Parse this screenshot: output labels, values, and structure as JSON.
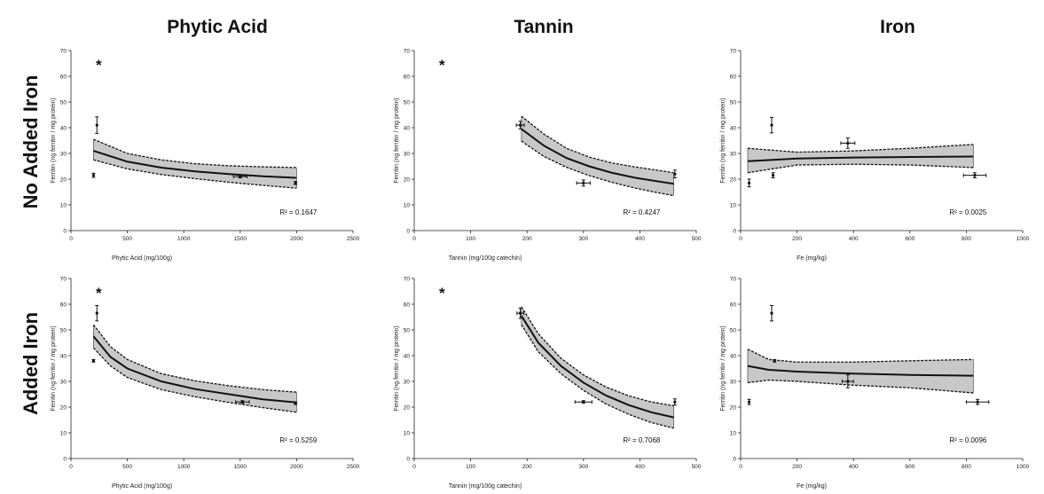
{
  "column_titles": [
    "Phytic Acid",
    "Tannin",
    "Iron"
  ],
  "row_titles": [
    "No Added Iron",
    "Added Iron"
  ],
  "chart_data": [
    {
      "type": "scatter",
      "row": 0,
      "col": 0,
      "xlabel": "Phytic Acid (mg/100g)",
      "ylabel": "Ferritin (ng ferritin / mg protein)",
      "xlim": [
        0,
        2500
      ],
      "ylim": [
        0,
        70
      ],
      "xticks": [
        "0",
        "500",
        "1000",
        "1500",
        "2000",
        "2500"
      ],
      "yticks": [
        "0",
        "10",
        "20",
        "30",
        "40",
        "50",
        "60",
        "70"
      ],
      "r2": "R² = 0.1647",
      "star": "*",
      "points": [
        {
          "x": 200,
          "y": 21.5,
          "xerr": 0,
          "yerr": 0.8
        },
        {
          "x": 230,
          "y": 41,
          "xerr": 0,
          "yerr": 3.2
        },
        {
          "x": 1500,
          "y": 21,
          "xerr": 60,
          "yerr": 0.5
        },
        {
          "x": 1990,
          "y": 18.5,
          "xerr": 0,
          "yerr": 0.6
        }
      ],
      "fit": {
        "x": [
          200,
          500,
          800,
          1100,
          1400,
          1700,
          2000
        ],
        "y": [
          31,
          26.8,
          24.5,
          23,
          22,
          21.1,
          20.5
        ]
      },
      "band_upper": [
        35.5,
        30,
        27.5,
        26,
        25.2,
        24.8,
        24.5
      ],
      "band_lower": [
        27.5,
        24,
        21.8,
        20.2,
        18.8,
        17.6,
        16.5
      ]
    },
    {
      "type": "scatter",
      "row": 0,
      "col": 1,
      "xlabel": "Tannin (mg/100g catechin)",
      "ylabel": "Ferritin (ng ferritin / mg protein)",
      "xlim": [
        0,
        500
      ],
      "ylim": [
        0,
        70
      ],
      "xticks": [
        "0",
        "100",
        "200",
        "300",
        "400",
        "500"
      ],
      "yticks": [
        "0",
        "10",
        "20",
        "30",
        "40",
        "50",
        "60",
        "70"
      ],
      "r2": "R² = 0.4247",
      "star": "*",
      "points": [
        {
          "x": 188,
          "y": 41,
          "xerr": 7,
          "yerr": 1.5
        },
        {
          "x": 300,
          "y": 18.5,
          "xerr": 12,
          "yerr": 1.2
        },
        {
          "x": 462,
          "y": 22,
          "xerr": 0,
          "yerr": 1.5
        }
      ],
      "fit": {
        "x": [
          190,
          230,
          270,
          310,
          350,
          390,
          430,
          460
        ],
        "y": [
          39.5,
          33,
          28.2,
          25,
          22.5,
          20.6,
          19.2,
          18.2
        ]
      },
      "band_upper": [
        44.5,
        37.5,
        32,
        28.6,
        26.3,
        24.8,
        23.5,
        22.5
      ],
      "band_lower": [
        34.8,
        28.8,
        24.6,
        21.4,
        18.8,
        16.6,
        14.8,
        13.6
      ]
    },
    {
      "type": "scatter",
      "row": 0,
      "col": 2,
      "xlabel": "Fe (mg/kg)",
      "ylabel": "Ferritin (ng ferritin / mg protein)",
      "xlim": [
        0,
        1000
      ],
      "ylim": [
        0,
        70
      ],
      "xticks": [
        "0",
        "200",
        "400",
        "600",
        "800",
        "1000"
      ],
      "yticks": [
        "0",
        "10",
        "20",
        "30",
        "40",
        "50",
        "60",
        "70"
      ],
      "r2": "R² = 0.0025",
      "star": "",
      "points": [
        {
          "x": 30,
          "y": 18.5,
          "xerr": 0,
          "yerr": 1.5
        },
        {
          "x": 110,
          "y": 41,
          "xerr": 0,
          "yerr": 3
        },
        {
          "x": 115,
          "y": 21.5,
          "xerr": 0,
          "yerr": 1
        },
        {
          "x": 380,
          "y": 34,
          "xerr": 25,
          "yerr": 2
        },
        {
          "x": 830,
          "y": 21.5,
          "xerr": 40,
          "yerr": 1
        }
      ],
      "fit": {
        "x": [
          25,
          200,
          400,
          600,
          825
        ],
        "y": [
          27,
          28,
          28.4,
          28.6,
          28.8
        ]
      },
      "band_upper": [
        32,
        30.5,
        31,
        32,
        33.5
      ],
      "band_lower": [
        22.5,
        25.5,
        25.8,
        25.5,
        24.5
      ]
    },
    {
      "type": "scatter",
      "row": 1,
      "col": 0,
      "xlabel": "Phytic Acid (mg/100g)",
      "ylabel": "Ferritin (ng ferritin / mg protein)",
      "xlim": [
        0,
        2500
      ],
      "ylim": [
        0,
        70
      ],
      "xticks": [
        "0",
        "500",
        "1000",
        "1500",
        "2000",
        "2500"
      ],
      "yticks": [
        "0",
        "10",
        "20",
        "30",
        "40",
        "50",
        "60",
        "70"
      ],
      "r2": "R² = 0.5259",
      "star": "*",
      "points": [
        {
          "x": 200,
          "y": 38,
          "xerr": 0,
          "yerr": 0.5
        },
        {
          "x": 230,
          "y": 56.5,
          "xerr": 0,
          "yerr": 3
        },
        {
          "x": 1520,
          "y": 22,
          "xerr": 60,
          "yerr": 0.5
        },
        {
          "x": 1990,
          "y": 21.5,
          "xerr": 0,
          "yerr": 0.5
        }
      ],
      "fit": {
        "x": [
          200,
          350,
          500,
          800,
          1100,
          1400,
          1700,
          2000
        ],
        "y": [
          47.5,
          39.5,
          35,
          30,
          27,
          25,
          23,
          21.8
        ]
      },
      "band_upper": [
        52,
        43.5,
        38.5,
        33,
        30.2,
        28.3,
        26.8,
        25.8
      ],
      "band_lower": [
        43,
        36,
        31.5,
        26.8,
        24,
        21.8,
        19.8,
        18
      ]
    },
    {
      "type": "scatter",
      "row": 1,
      "col": 1,
      "xlabel": "Tannin (mg/100g catechin)",
      "ylabel": "Ferritin (ng ferritin / mg protein)",
      "xlim": [
        0,
        500
      ],
      "ylim": [
        0,
        70
      ],
      "xticks": [
        "0",
        "100",
        "200",
        "300",
        "400",
        "500"
      ],
      "yticks": [
        "0",
        "10",
        "20",
        "30",
        "40",
        "50",
        "60",
        "70"
      ],
      "r2": "R² = 0.7068",
      "star": "*",
      "points": [
        {
          "x": 188,
          "y": 56.5,
          "xerr": 6,
          "yerr": 2
        },
        {
          "x": 300,
          "y": 22,
          "xerr": 15,
          "yerr": 0.5
        },
        {
          "x": 462,
          "y": 22,
          "xerr": 0,
          "yerr": 1.2
        }
      ],
      "fit": {
        "x": [
          190,
          220,
          260,
          300,
          340,
          380,
          420,
          460
        ],
        "y": [
          55.5,
          45,
          36,
          29.5,
          24.5,
          20.8,
          18,
          16
        ]
      },
      "band_upper": [
        59,
        48.5,
        39,
        32.5,
        27.8,
        24.4,
        22,
        20.5
      ],
      "band_lower": [
        52,
        41.5,
        33,
        26.5,
        21.2,
        17.2,
        14,
        11.8
      ]
    },
    {
      "type": "scatter",
      "row": 1,
      "col": 2,
      "xlabel": "Fe (mg/kg)",
      "ylabel": "Ferritin (ng ferritin / mg protein)",
      "xlim": [
        0,
        1000
      ],
      "ylim": [
        0,
        70
      ],
      "xticks": [
        "0",
        "200",
        "400",
        "600",
        "800",
        "1000"
      ],
      "yticks": [
        "0",
        "10",
        "20",
        "30",
        "40",
        "50",
        "60",
        "70"
      ],
      "r2": "R² = 0.0096",
      "star": "",
      "points": [
        {
          "x": 30,
          "y": 22,
          "xerr": 0,
          "yerr": 1
        },
        {
          "x": 110,
          "y": 56.5,
          "xerr": 0,
          "yerr": 3
        },
        {
          "x": 120,
          "y": 38,
          "xerr": 0,
          "yerr": 0.5
        },
        {
          "x": 380,
          "y": 30,
          "xerr": 20,
          "yerr": 2.5
        },
        {
          "x": 840,
          "y": 22,
          "xerr": 40,
          "yerr": 1
        }
      ],
      "fit": {
        "x": [
          25,
          100,
          200,
          400,
          600,
          825
        ],
        "y": [
          36,
          34.5,
          33.8,
          33,
          32.5,
          32.2
        ]
      },
      "band_upper": [
        42.5,
        38.5,
        37.5,
        37.5,
        38,
        38.5
      ],
      "band_lower": [
        29.5,
        30.5,
        30,
        28.5,
        27.5,
        25.5
      ]
    }
  ]
}
